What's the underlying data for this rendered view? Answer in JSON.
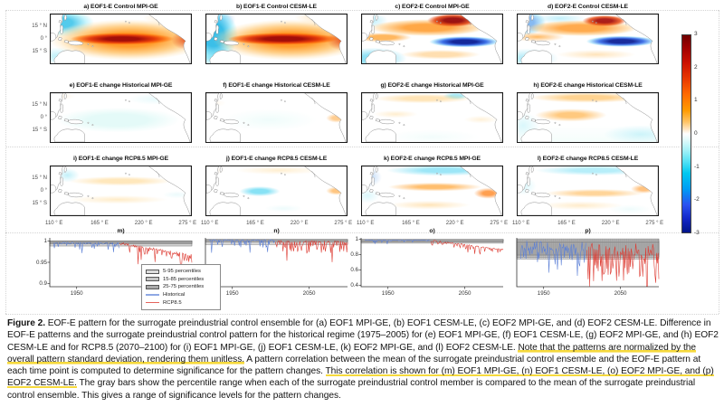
{
  "figure": {
    "maps": {
      "rows": [
        {
          "panels": [
            {
              "id": "a",
              "title": "a) EOF1-E Control MPI-GE"
            },
            {
              "id": "b",
              "title": "b) EOF1-E Control CESM-LE"
            },
            {
              "id": "c",
              "title": "c) EOF2-E Control MPI-GE"
            },
            {
              "id": "d",
              "title": "d) EOF2-E Control CESM-LE"
            }
          ]
        },
        {
          "panels": [
            {
              "id": "e",
              "title": "e) EOF1-E change Historical MPI-GE"
            },
            {
              "id": "f",
              "title": "f) EOF1-E change Historical CESM-LE"
            },
            {
              "id": "g",
              "title": "g) EOF2-E change Historical MPI-GE"
            },
            {
              "id": "h",
              "title": "h) EOF2-E change Historical CESM-LE"
            }
          ]
        },
        {
          "panels": [
            {
              "id": "i",
              "title": "i) EOF1-E change RCP8.5 MPI-GE"
            },
            {
              "id": "j",
              "title": "j) EOF1-E change RCP8.5 CESM-LE"
            },
            {
              "id": "k",
              "title": "k) EOF2-E change RCP8.5 MPI-GE"
            },
            {
              "id": "l",
              "title": "l) EOF2-E change RCP8.5 CESM-LE"
            }
          ]
        }
      ],
      "ytick_labels": [
        "15 ° N",
        "0 °",
        "15 ° S"
      ],
      "xtick_labels": [
        "110 ° E",
        "165 ° E",
        "220 ° E",
        "275 ° E"
      ]
    },
    "colorbar": {
      "tick_labels": [
        "3",
        "2",
        "1",
        "0",
        "-1",
        "-2",
        "-3"
      ],
      "range": [
        -3,
        3
      ]
    },
    "timeseries": {
      "year_range": [
        1915,
        2100
      ],
      "colors": {
        "historical": "#5b7fd6",
        "rcp85": "#dd3b32"
      },
      "band_colors": [
        "#dcdcdc",
        "#c6c6c6",
        "#aaaaaa"
      ],
      "panels": [
        {
          "label": "m)",
          "seed": 11,
          "ylim": [
            0.893,
            1.007
          ],
          "yticks": [
            1,
            0.95,
            0.9
          ],
          "xticks": [
            1950,
            2050
          ],
          "bands": [
            [
              0.988,
              1.0
            ],
            [
              0.9925,
              1.0
            ],
            [
              0.996,
              1.0
            ]
          ],
          "hatch": false,
          "series": [
            {
              "period": "historical",
              "start": 1920,
              "end": 2005,
              "base": 0.995,
              "noise": 0.0025,
              "dip_freq": 0.25,
              "dip_depth": 0.013,
              "trend": -0.001
            },
            {
              "period": "rcp85",
              "start": 2006,
              "end": 2100,
              "base": 0.994,
              "noise": 0.003,
              "dip_freq": 0.3,
              "dip_depth": 0.018,
              "trend": -0.028
            }
          ]
        },
        {
          "label": "n)",
          "seed": 23,
          "ylim": [
            0.38,
            1.02
          ],
          "yticks": [],
          "xticks": [
            1950,
            2050
          ],
          "bands": [
            [
              0.935,
              1.0
            ],
            [
              0.962,
              1.0
            ],
            [
              0.983,
              1.0
            ]
          ],
          "hatch": false,
          "series": [
            {
              "period": "historical",
              "start": 1920,
              "end": 2005,
              "base": 0.99,
              "noise": 0.008,
              "dip_freq": 0.3,
              "dip_depth": 0.1,
              "trend": 0
            },
            {
              "period": "rcp85",
              "start": 2006,
              "end": 2100,
              "base": 0.978,
              "noise": 0.012,
              "dip_freq": 0.45,
              "dip_depth": 0.16,
              "trend": -0.012
            }
          ]
        },
        {
          "label": "o)",
          "seed": 37,
          "ylim": [
            0.38,
            1.02
          ],
          "yticks": [
            1,
            0.8,
            0.6,
            0.4
          ],
          "xticks": [
            1950,
            2050
          ],
          "bands": [
            [
              0.95,
              1.0
            ],
            [
              0.968,
              1.0
            ],
            [
              0.982,
              1.0
            ]
          ],
          "hatch": false,
          "series": [
            {
              "period": "historical",
              "start": 1920,
              "end": 2005,
              "base": 0.99,
              "noise": 0.005,
              "dip_freq": 0.25,
              "dip_depth": 0.03,
              "trend": 0
            },
            {
              "period": "rcp85",
              "start": 2006,
              "end": 2100,
              "base": 0.985,
              "noise": 0.008,
              "dip_freq": 0.4,
              "dip_depth": 0.06,
              "trend": -0.12
            }
          ]
        },
        {
          "label": "p)",
          "seed": 53,
          "ylim": [
            0,
            1.02
          ],
          "yticks": [],
          "xticks": [
            1950,
            2050
          ],
          "bands": [
            [
              0.58,
              1.0
            ],
            [
              0.62,
              0.97
            ],
            [
              0.66,
              0.94
            ]
          ],
          "hatch": true,
          "series": [
            {
              "period": "historical",
              "start": 1920,
              "end": 2005,
              "base": 0.86,
              "noise": 0.1,
              "dip_freq": 0.5,
              "dip_depth": 0.35,
              "trend": -0.02
            },
            {
              "period": "rcp85",
              "start": 2006,
              "end": 2100,
              "base": 0.82,
              "noise": 0.12,
              "dip_freq": 0.55,
              "dip_depth": 0.75,
              "trend": -0.05
            }
          ]
        }
      ],
      "legend": {
        "band_entries": [
          {
            "label": "5-95 percentiles",
            "color": "#dcdcdc"
          },
          {
            "label": "15-85 percentiles",
            "color": "#c6c6c6"
          },
          {
            "label": "25-75 percentiles",
            "color": "#aaaaaa"
          }
        ],
        "line_entries": [
          {
            "label": "Historical",
            "color": "#8fa8e4"
          },
          {
            "label": "RCP8.5",
            "color": "#e4635c"
          }
        ]
      }
    }
  },
  "caption": {
    "segments": [
      {
        "style": "bold",
        "text": "Figure 2."
      },
      {
        "style": "plain",
        "text": " EOF-E pattern for the surrogate preindustrial control ensemble for (a) EOF1 MPI-GE, (b) EOF1 CESM-LE, (c) EOF2 MPI-GE, and (d) EOF2 CESM-LE. Difference in EOF-E patterns and the surrogate preindustrial control pattern for the historical regime (1975–2005) for (e) EOF1 MPI-GE, (f) EOF1 CESM-LE, (g) EOF2 MPI-GE, and (h) EOF2 CESM-LE and for RCP8.5 (2070–2100) for (i) EOF1 MPI-GE, (j) EOF1 CESM-LE, (k) EOF2 MPI-GE, and (l) EOF2 CESM-LE. "
      },
      {
        "style": "highlight",
        "text": "Note that the patterns are normalized by the overall pattern standard deviation, rendering them unitless."
      },
      {
        "style": "plain",
        "text": " A pattern correlation between the mean of the surrogate preindustrial control ensemble and the EOF-E pattern at each time point is computed to determine significance for the pattern changes. "
      },
      {
        "style": "highlight",
        "text": "This correlation is shown for (m) EOF1 MPI-GE, (n) EOF1 CESM-LE, (o) EOF2 MPI-GE, and (p) EOF2 CESM-LE."
      },
      {
        "style": "plain",
        "text": " The gray bars show the percentile range when each of the surrogate preindustrial control member is compared to the mean of the surrogate preindustrial control ensemble. This gives a range of significance levels for the pattern changes."
      }
    ]
  }
}
